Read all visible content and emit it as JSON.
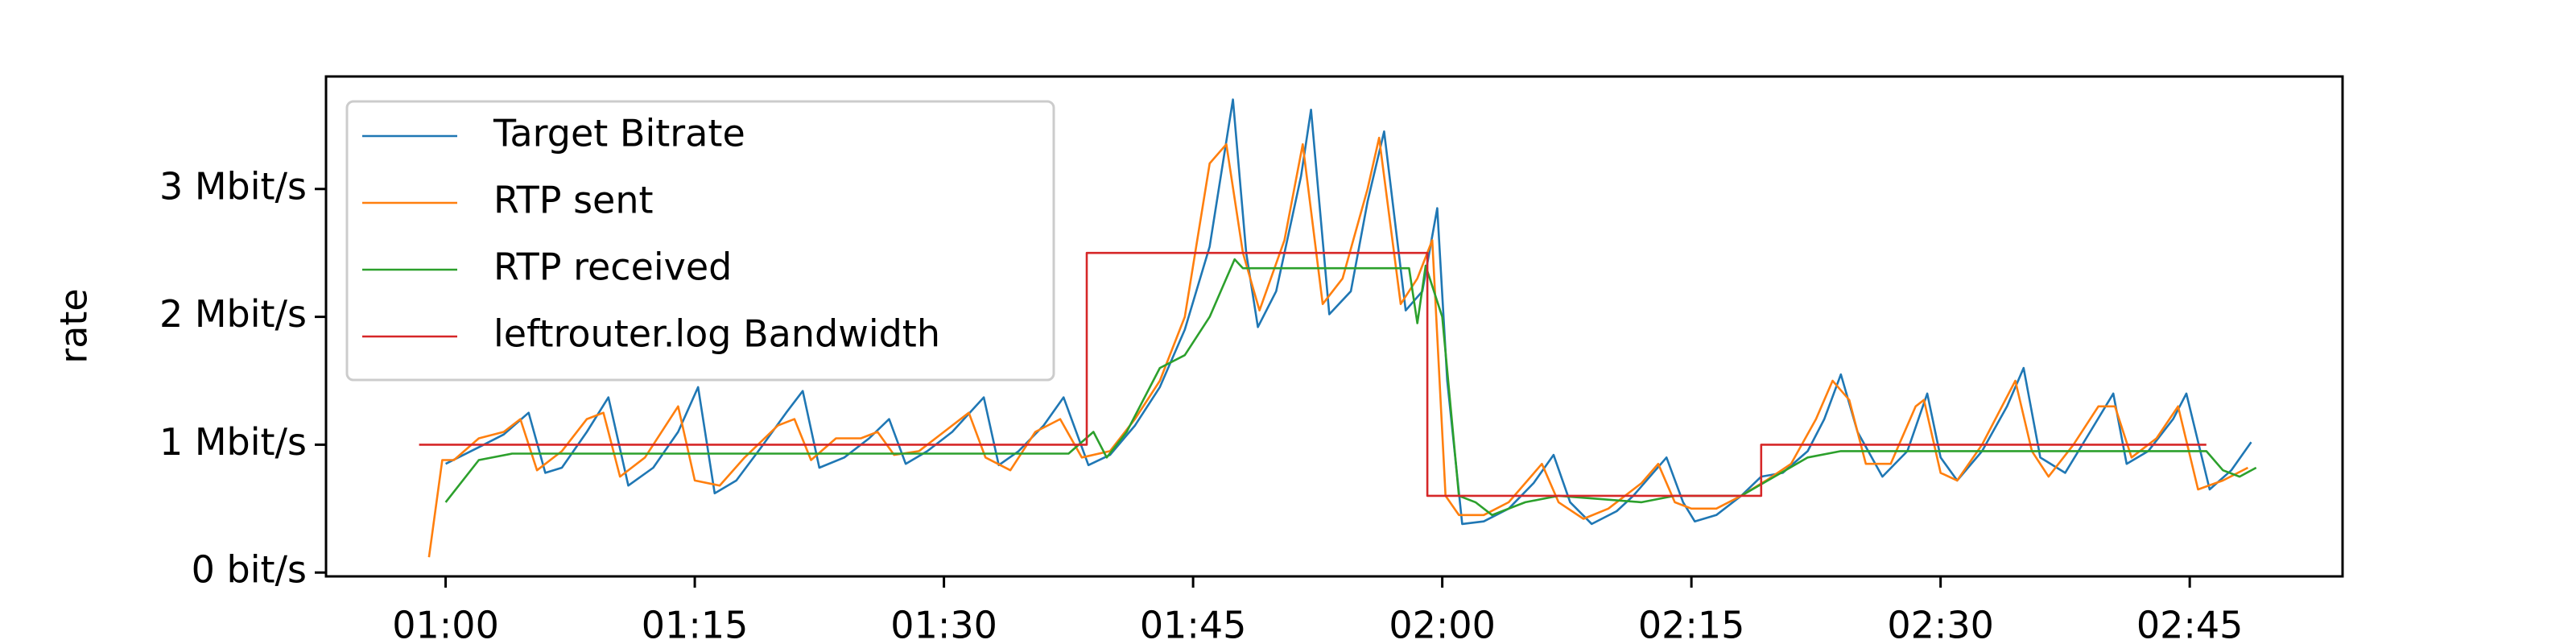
{
  "chart_data": {
    "type": "line",
    "ylabel": "rate",
    "legend": "upper left",
    "xlim": [
      52.8,
      174.2
    ],
    "ylim": [
      -30000,
      3880000
    ],
    "xticks": [
      {
        "value": 60,
        "label": "01:00"
      },
      {
        "value": 75,
        "label": "01:15"
      },
      {
        "value": 90,
        "label": "01:30"
      },
      {
        "value": 105,
        "label": "01:45"
      },
      {
        "value": 120,
        "label": "02:00"
      },
      {
        "value": 135,
        "label": "02:15"
      },
      {
        "value": 150,
        "label": "02:30"
      },
      {
        "value": 165,
        "label": "02:45"
      }
    ],
    "yticks": [
      {
        "value": 0,
        "label": "0 bit/s"
      },
      {
        "value": 1000000,
        "label": "1 Mbit/s"
      },
      {
        "value": 2000000,
        "label": "2 Mbit/s"
      },
      {
        "value": 3000000,
        "label": "3 Mbit/s"
      }
    ],
    "series": [
      {
        "name": "Target Bitrate",
        "color": "#1f77b4",
        "x": [
          60,
          62,
          63.5,
          65,
          66,
          67,
          68.5,
          69.8,
          71,
          72.5,
          74,
          75.2,
          76.2,
          77.5,
          79,
          80.5,
          81.5,
          82.5,
          84,
          85.5,
          86.7,
          87.7,
          89,
          90.5,
          92.4,
          93.3,
          94.5,
          96,
          97.2,
          98.7,
          100,
          101.5,
          103,
          104.5,
          106,
          107.4,
          108.2,
          108.9,
          110,
          111.5,
          112.1,
          113.2,
          114.5,
          115.5,
          116.5,
          117.8,
          118.8,
          119.7,
          120.3,
          121.2,
          122.5,
          124,
          125.5,
          126.7,
          127.7,
          129,
          130.5,
          131.5,
          133.5,
          134.5,
          135.2,
          136.5,
          138,
          139.2,
          140.5,
          142,
          143,
          144,
          145,
          146.5,
          148,
          149.2,
          150,
          151,
          152.5,
          154,
          155,
          156,
          157.5,
          159,
          160.4,
          161.2,
          162.5,
          164,
          164.8,
          166.2,
          167.5,
          168.7
        ],
        "values": [
          850000,
          980000,
          1080000,
          1250000,
          780000,
          820000,
          1100000,
          1370000,
          680000,
          820000,
          1100000,
          1450000,
          620000,
          720000,
          980000,
          1250000,
          1420000,
          820000,
          900000,
          1050000,
          1200000,
          850000,
          950000,
          1100000,
          1370000,
          840000,
          950000,
          1150000,
          1370000,
          840000,
          920000,
          1150000,
          1450000,
          1900000,
          2550000,
          3700000,
          2500000,
          1920000,
          2200000,
          3100000,
          3620000,
          2020000,
          2200000,
          2900000,
          3450000,
          2050000,
          2200000,
          2850000,
          1500000,
          380000,
          400000,
          500000,
          700000,
          920000,
          550000,
          380000,
          480000,
          600000,
          900000,
          550000,
          400000,
          450000,
          600000,
          750000,
          780000,
          950000,
          1200000,
          1550000,
          1100000,
          750000,
          950000,
          1400000,
          900000,
          720000,
          950000,
          1300000,
          1600000,
          900000,
          780000,
          1100000,
          1400000,
          850000,
          950000,
          1200000,
          1400000,
          650000,
          800000,
          1020000
        ]
      },
      {
        "name": "RTP sent",
        "color": "#ff7f0e",
        "x": [
          59,
          59.8,
          60.5,
          62,
          63.5,
          64.5,
          65.5,
          67,
          68.5,
          69.5,
          70.5,
          72,
          74,
          75,
          76.5,
          78,
          80,
          81,
          82,
          83.5,
          85,
          86,
          87,
          88.5,
          90,
          91.5,
          92.5,
          94,
          95.5,
          97,
          98.3,
          100,
          101.5,
          103,
          104.5,
          106,
          107,
          108,
          109,
          110.5,
          111.6,
          112.8,
          114,
          115.5,
          116.2,
          117.5,
          118.5,
          119.4,
          120.2,
          121,
          122.5,
          124,
          126,
          127,
          128.5,
          130,
          132,
          133,
          134,
          135,
          136.5,
          138,
          139.5,
          141,
          142.5,
          143.5,
          144.5,
          145.5,
          147,
          148.5,
          149,
          150,
          151,
          152.5,
          154.5,
          155.5,
          156.5,
          158,
          159.5,
          160.5,
          161.5,
          163,
          164.3,
          165.5,
          167,
          168.5
        ],
        "values": [
          120000,
          880000,
          880000,
          1050000,
          1100000,
          1200000,
          800000,
          950000,
          1200000,
          1250000,
          750000,
          900000,
          1300000,
          720000,
          680000,
          900000,
          1150000,
          1200000,
          880000,
          1050000,
          1050000,
          1100000,
          920000,
          950000,
          1100000,
          1250000,
          900000,
          800000,
          1100000,
          1200000,
          900000,
          950000,
          1200000,
          1500000,
          2000000,
          3200000,
          3350000,
          2500000,
          2050000,
          2600000,
          3350000,
          2100000,
          2300000,
          3000000,
          3400000,
          2100000,
          2300000,
          2600000,
          600000,
          450000,
          450000,
          550000,
          850000,
          550000,
          420000,
          500000,
          700000,
          850000,
          550000,
          500000,
          500000,
          600000,
          720000,
          850000,
          1200000,
          1500000,
          1350000,
          850000,
          850000,
          1300000,
          1350000,
          780000,
          720000,
          1000000,
          1500000,
          950000,
          750000,
          1000000,
          1300000,
          1300000,
          900000,
          1050000,
          1300000,
          650000,
          720000,
          820000
        ]
      },
      {
        "name": "RTP received",
        "color": "#2ca02c",
        "x": [
          60,
          62,
          64,
          70,
          80,
          90,
          97.5,
          99,
          99.8,
          101,
          103,
          104.5,
          106,
          107.5,
          108,
          113,
          118,
          118.5,
          119,
          120,
          121,
          122,
          123,
          125,
          127,
          132,
          134,
          136,
          138,
          140,
          142,
          144,
          150,
          160,
          166,
          167,
          168,
          169
        ],
        "values": [
          550000,
          880000,
          930000,
          930000,
          930000,
          930000,
          930000,
          1100000,
          900000,
          1100000,
          1600000,
          1700000,
          2000000,
          2450000,
          2380000,
          2380000,
          2380000,
          1950000,
          2400000,
          2000000,
          600000,
          550000,
          450000,
          550000,
          600000,
          550000,
          600000,
          600000,
          600000,
          750000,
          900000,
          950000,
          950000,
          950000,
          950000,
          800000,
          750000,
          820000
        ]
      },
      {
        "name": "leftrouter.log Bandwidth",
        "color": "#d62728",
        "x": [
          58.4,
          98.6,
          98.6,
          119.1,
          119.1,
          139.2,
          139.2,
          166
        ],
        "values": [
          1000000,
          1000000,
          2500000,
          2500000,
          600000,
          600000,
          1000000,
          1000000
        ]
      }
    ]
  }
}
